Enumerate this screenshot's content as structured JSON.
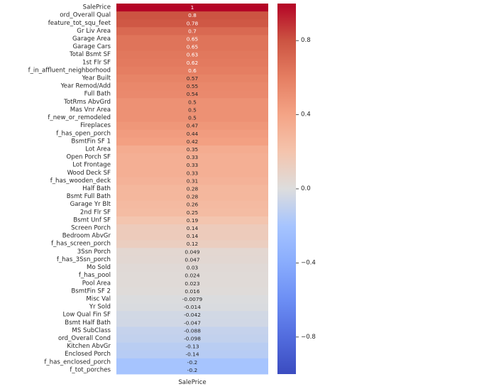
{
  "chart_data": {
    "type": "heatmap",
    "title": "",
    "xlabel": "",
    "ylabel": "",
    "column": "SalePrice",
    "colormap": "coolwarm",
    "vmin": -1,
    "vmax": 1,
    "colorbar_ticks": [
      0.8,
      0.4,
      0.0,
      -0.4,
      -0.8
    ],
    "colorbar_tick_labels": [
      "0.8",
      "0.4",
      "0.0",
      "−0.4",
      "−0.8"
    ],
    "rows": [
      {
        "label": "SalePrice",
        "value": 1,
        "text": "1"
      },
      {
        "label": "ord_Overall Qual",
        "value": 0.8,
        "text": "0.8"
      },
      {
        "label": "feature_tot_squ_feet",
        "value": 0.78,
        "text": "0.78"
      },
      {
        "label": "Gr Liv Area",
        "value": 0.7,
        "text": "0.7"
      },
      {
        "label": "Garage Area",
        "value": 0.65,
        "text": "0.65"
      },
      {
        "label": "Garage Cars",
        "value": 0.65,
        "text": "0.65"
      },
      {
        "label": "Total Bsmt SF",
        "value": 0.63,
        "text": "0.63"
      },
      {
        "label": "1st Flr SF",
        "value": 0.62,
        "text": "0.62"
      },
      {
        "label": "f_in_affluent_neighborhood",
        "value": 0.6,
        "text": "0.6"
      },
      {
        "label": "Year Built",
        "value": 0.57,
        "text": "0.57"
      },
      {
        "label": "Year Remod/Add",
        "value": 0.55,
        "text": "0.55"
      },
      {
        "label": "Full Bath",
        "value": 0.54,
        "text": "0.54"
      },
      {
        "label": "TotRms AbvGrd",
        "value": 0.5,
        "text": "0.5"
      },
      {
        "label": "Mas Vnr Area",
        "value": 0.5,
        "text": "0.5"
      },
      {
        "label": "f_new_or_remodeled",
        "value": 0.5,
        "text": "0.5"
      },
      {
        "label": "Fireplaces",
        "value": 0.47,
        "text": "0.47"
      },
      {
        "label": "f_has_open_porch",
        "value": 0.44,
        "text": "0.44"
      },
      {
        "label": "BsmtFin SF 1",
        "value": 0.42,
        "text": "0.42"
      },
      {
        "label": "Lot Area",
        "value": 0.35,
        "text": "0.35"
      },
      {
        "label": "Open Porch SF",
        "value": 0.33,
        "text": "0.33"
      },
      {
        "label": "Lot Frontage",
        "value": 0.33,
        "text": "0.33"
      },
      {
        "label": "Wood Deck SF",
        "value": 0.33,
        "text": "0.33"
      },
      {
        "label": "f_has_wooden_deck",
        "value": 0.31,
        "text": "0.31"
      },
      {
        "label": "Half Bath",
        "value": 0.28,
        "text": "0.28"
      },
      {
        "label": "Bsmt Full Bath",
        "value": 0.28,
        "text": "0.28"
      },
      {
        "label": "Garage Yr Blt",
        "value": 0.26,
        "text": "0.26"
      },
      {
        "label": "2nd Flr SF",
        "value": 0.25,
        "text": "0.25"
      },
      {
        "label": "Bsmt Unf SF",
        "value": 0.19,
        "text": "0.19"
      },
      {
        "label": "Screen Porch",
        "value": 0.14,
        "text": "0.14"
      },
      {
        "label": "Bedroom AbvGr",
        "value": 0.14,
        "text": "0.14"
      },
      {
        "label": "f_has_screen_porch",
        "value": 0.12,
        "text": "0.12"
      },
      {
        "label": "3Ssn Porch",
        "value": 0.049,
        "text": "0.049"
      },
      {
        "label": "f_has_3Ssn_porch",
        "value": 0.047,
        "text": "0.047"
      },
      {
        "label": "Mo Sold",
        "value": 0.03,
        "text": "0.03"
      },
      {
        "label": "f_has_pool",
        "value": 0.024,
        "text": "0.024"
      },
      {
        "label": "Pool Area",
        "value": 0.023,
        "text": "0.023"
      },
      {
        "label": "BsmtFin SF 2",
        "value": 0.016,
        "text": "0.016"
      },
      {
        "label": "Misc Val",
        "value": -0.0079,
        "text": "-0.0079"
      },
      {
        "label": "Yr Sold",
        "value": -0.014,
        "text": "-0.014"
      },
      {
        "label": "Low Qual Fin SF",
        "value": -0.042,
        "text": "-0.042"
      },
      {
        "label": "Bsmt Half Bath",
        "value": -0.047,
        "text": "-0.047"
      },
      {
        "label": "MS SubClass",
        "value": -0.088,
        "text": "-0.088"
      },
      {
        "label": "ord_Overall Cond",
        "value": -0.098,
        "text": "-0.098"
      },
      {
        "label": "Kitchen AbvGr",
        "value": -0.13,
        "text": "-0.13"
      },
      {
        "label": "Enclosed Porch",
        "value": -0.14,
        "text": "-0.14"
      },
      {
        "label": "f_has_enclosed_porch",
        "value": -0.2,
        "text": "-0.2"
      },
      {
        "label": "f_tot_porches",
        "value": -0.2,
        "text": "-0.2"
      }
    ]
  }
}
